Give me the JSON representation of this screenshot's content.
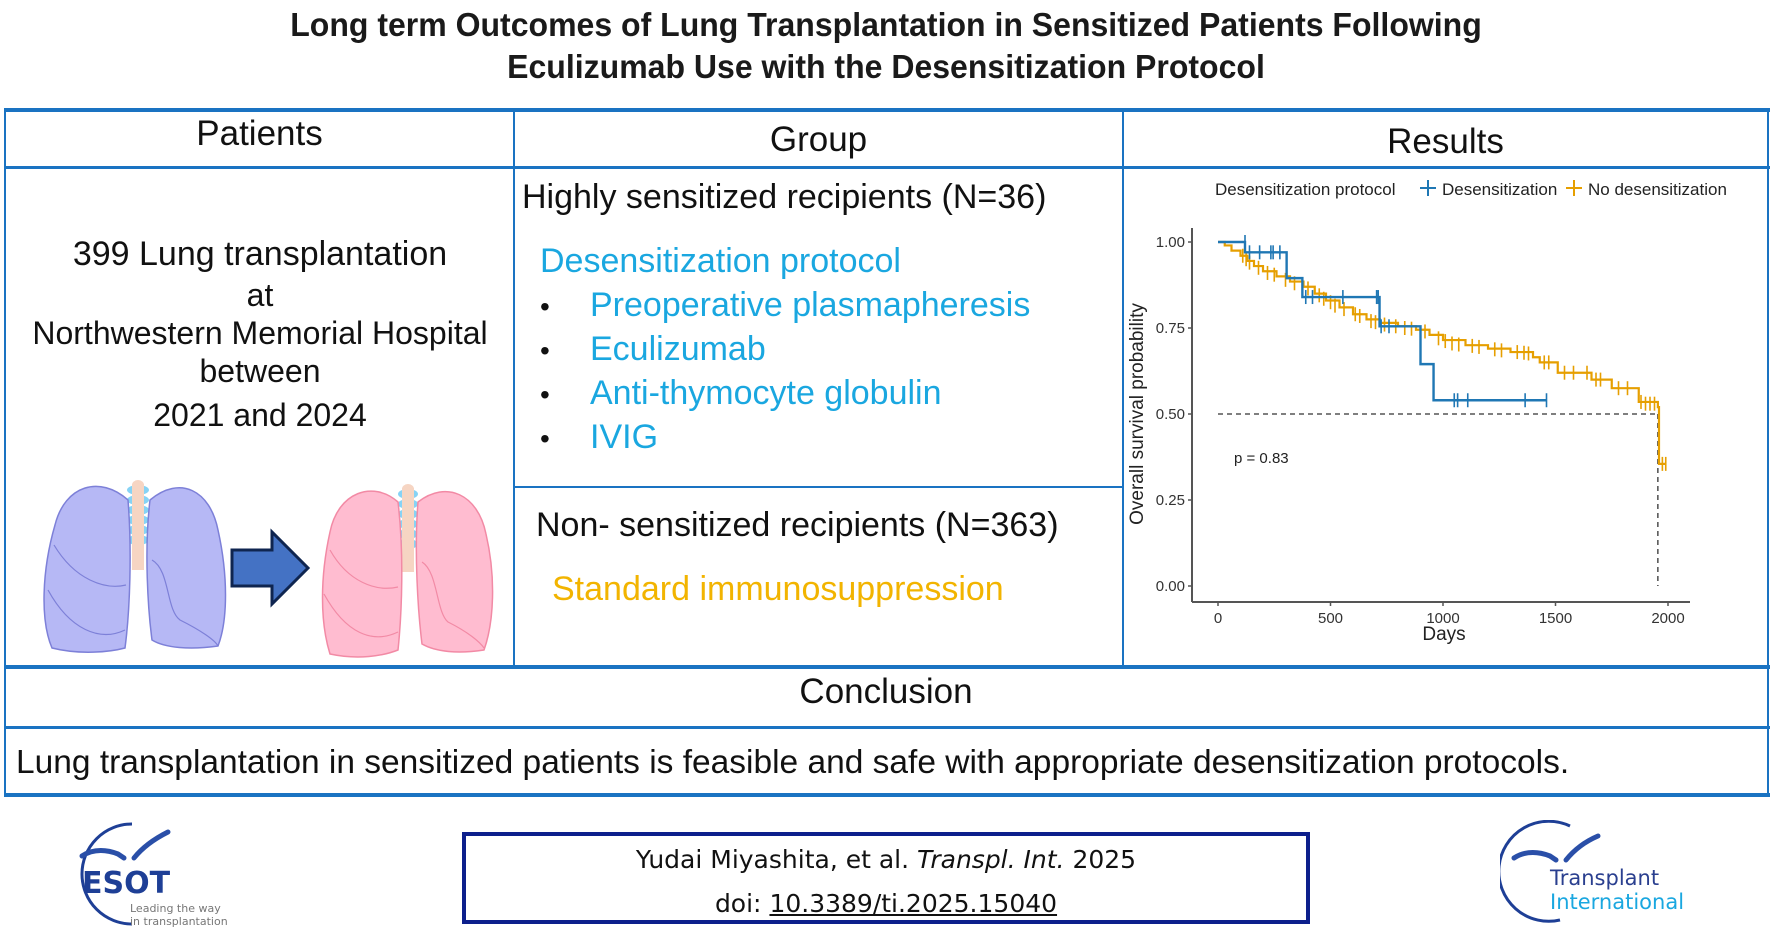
{
  "title": {
    "line1": "Long term Outcomes of Lung Transplantation in Sensitized Patients Following",
    "line2": "Eculizumab Use with the Desensitization Protocol"
  },
  "columns": {
    "patients_header": "Patients",
    "group_header": "Group",
    "results_header": "Results"
  },
  "patients": {
    "line1": "399 Lung transplantation",
    "line2": "at",
    "line3": "Northwestern Memorial Hospital",
    "line4": "between",
    "line5": "2021 and 2024",
    "illustration": {
      "before_icon": "lungs-icon",
      "arrow_icon": "arrow-right-icon",
      "after_icon": "lungs-icon"
    }
  },
  "groups": {
    "sensitized": {
      "title": "Highly sensitized recipients (N=36)",
      "protocol_label": "Desensitization protocol",
      "items": [
        "Preoperative plasmapheresis",
        "Eculizumab",
        "Anti-thymocyte globulin",
        "IVIG"
      ],
      "bullet": "•"
    },
    "non_sensitized": {
      "title": "Non- sensitized recipients (N=363)",
      "regimen": "Standard immunosuppression"
    }
  },
  "conclusion": {
    "header": "Conclusion",
    "text": "Lung transplantation in sensitized patients is feasible and safe with appropriate desensitization protocols."
  },
  "citation": {
    "authors": "Yudai Miyashita, et al.",
    "journal": "Transpl. Int.",
    "year": "2025",
    "doi_label": "doi:",
    "doi": "10.3389/ti.2025.15040"
  },
  "logos": {
    "left": {
      "name": "ESOT",
      "tagline1": "Leading the way",
      "tagline2": "in transplantation"
    },
    "right": {
      "line1": "Transplant",
      "line2": "International"
    }
  },
  "colors": {
    "border": "#1a73c2",
    "desensitization": "#1f77b4",
    "no_desensitization": "#e69f00",
    "protocol_text": "#1aa7e0",
    "standard_text": "#f2b400",
    "cite_border": "#0d1f8c"
  },
  "chart_data": {
    "type": "line",
    "subtype": "kaplan-meier",
    "title": "",
    "xlabel": "Days",
    "ylabel": "Overall survival probability",
    "xlim": [
      0,
      2000
    ],
    "ylim": [
      0,
      1
    ],
    "x_ticks": [
      "0",
      "500",
      "1000",
      "1500",
      "2000"
    ],
    "y_ticks": [
      "0.00",
      "0.25",
      "0.50",
      "0.75",
      "1.00"
    ],
    "legend_title": "Desensitization protocol",
    "legend_position": "top",
    "grid": false,
    "annotation": "p = 0.83",
    "median_line": {
      "y": 0.5,
      "x": 1955
    },
    "series": [
      {
        "name": "Desensitization",
        "color": "#1f77b4",
        "steps": [
          [
            0,
            1.0
          ],
          [
            120,
            0.97
          ],
          [
            305,
            0.895
          ],
          [
            375,
            0.84
          ],
          [
            718,
            0.755
          ],
          [
            900,
            0.645
          ],
          [
            958,
            0.54
          ],
          [
            1460,
            0.54
          ]
        ],
        "censored": [
          [
            120,
            1.0
          ],
          [
            140,
            0.97
          ],
          [
            185,
            0.97
          ],
          [
            235,
            0.97
          ],
          [
            245,
            0.97
          ],
          [
            275,
            0.97
          ],
          [
            390,
            0.84
          ],
          [
            420,
            0.84
          ],
          [
            555,
            0.84
          ],
          [
            705,
            0.84
          ],
          [
            712,
            0.84
          ],
          [
            725,
            0.755
          ],
          [
            760,
            0.755
          ],
          [
            1050,
            0.54
          ],
          [
            1065,
            0.54
          ],
          [
            1110,
            0.54
          ],
          [
            1365,
            0.54
          ],
          [
            1460,
            0.54
          ]
        ]
      },
      {
        "name": "No desensitization",
        "color": "#e69f00",
        "steps": [
          [
            0,
            1.0
          ],
          [
            30,
            0.99
          ],
          [
            60,
            0.975
          ],
          [
            100,
            0.96
          ],
          [
            130,
            0.945
          ],
          [
            160,
            0.93
          ],
          [
            200,
            0.915
          ],
          [
            260,
            0.9
          ],
          [
            320,
            0.885
          ],
          [
            380,
            0.87
          ],
          [
            430,
            0.85
          ],
          [
            480,
            0.83
          ],
          [
            540,
            0.81
          ],
          [
            600,
            0.79
          ],
          [
            660,
            0.775
          ],
          [
            720,
            0.765
          ],
          [
            800,
            0.755
          ],
          [
            880,
            0.745
          ],
          [
            940,
            0.73
          ],
          [
            1000,
            0.715
          ],
          [
            1100,
            0.7
          ],
          [
            1200,
            0.69
          ],
          [
            1300,
            0.68
          ],
          [
            1400,
            0.665
          ],
          [
            1430,
            0.65
          ],
          [
            1510,
            0.62
          ],
          [
            1660,
            0.6
          ],
          [
            1750,
            0.575
          ],
          [
            1870,
            0.535
          ],
          [
            1955,
            0.52
          ],
          [
            1960,
            0.355
          ],
          [
            1990,
            0.355
          ]
        ],
        "censored": [
          [
            110,
            0.96
          ],
          [
            125,
            0.95
          ],
          [
            140,
            0.94
          ],
          [
            180,
            0.925
          ],
          [
            220,
            0.91
          ],
          [
            250,
            0.905
          ],
          [
            300,
            0.89
          ],
          [
            340,
            0.88
          ],
          [
            400,
            0.865
          ],
          [
            450,
            0.845
          ],
          [
            470,
            0.835
          ],
          [
            500,
            0.825
          ],
          [
            520,
            0.815
          ],
          [
            560,
            0.805
          ],
          [
            610,
            0.79
          ],
          [
            630,
            0.785
          ],
          [
            680,
            0.77
          ],
          [
            700,
            0.767
          ],
          [
            740,
            0.76
          ],
          [
            790,
            0.755
          ],
          [
            830,
            0.75
          ],
          [
            860,
            0.748
          ],
          [
            920,
            0.74
          ],
          [
            980,
            0.72
          ],
          [
            1010,
            0.712
          ],
          [
            1040,
            0.705
          ],
          [
            1070,
            0.702
          ],
          [
            1130,
            0.698
          ],
          [
            1160,
            0.695
          ],
          [
            1230,
            0.688
          ],
          [
            1260,
            0.685
          ],
          [
            1330,
            0.68
          ],
          [
            1360,
            0.678
          ],
          [
            1380,
            0.676
          ],
          [
            1450,
            0.65
          ],
          [
            1470,
            0.65
          ],
          [
            1540,
            0.62
          ],
          [
            1580,
            0.62
          ],
          [
            1640,
            0.62
          ],
          [
            1680,
            0.6
          ],
          [
            1700,
            0.6
          ],
          [
            1780,
            0.575
          ],
          [
            1820,
            0.575
          ],
          [
            1880,
            0.535
          ],
          [
            1900,
            0.53
          ],
          [
            1920,
            0.53
          ],
          [
            1940,
            0.53
          ],
          [
            1975,
            0.355
          ],
          [
            1990,
            0.355
          ]
        ]
      }
    ]
  }
}
